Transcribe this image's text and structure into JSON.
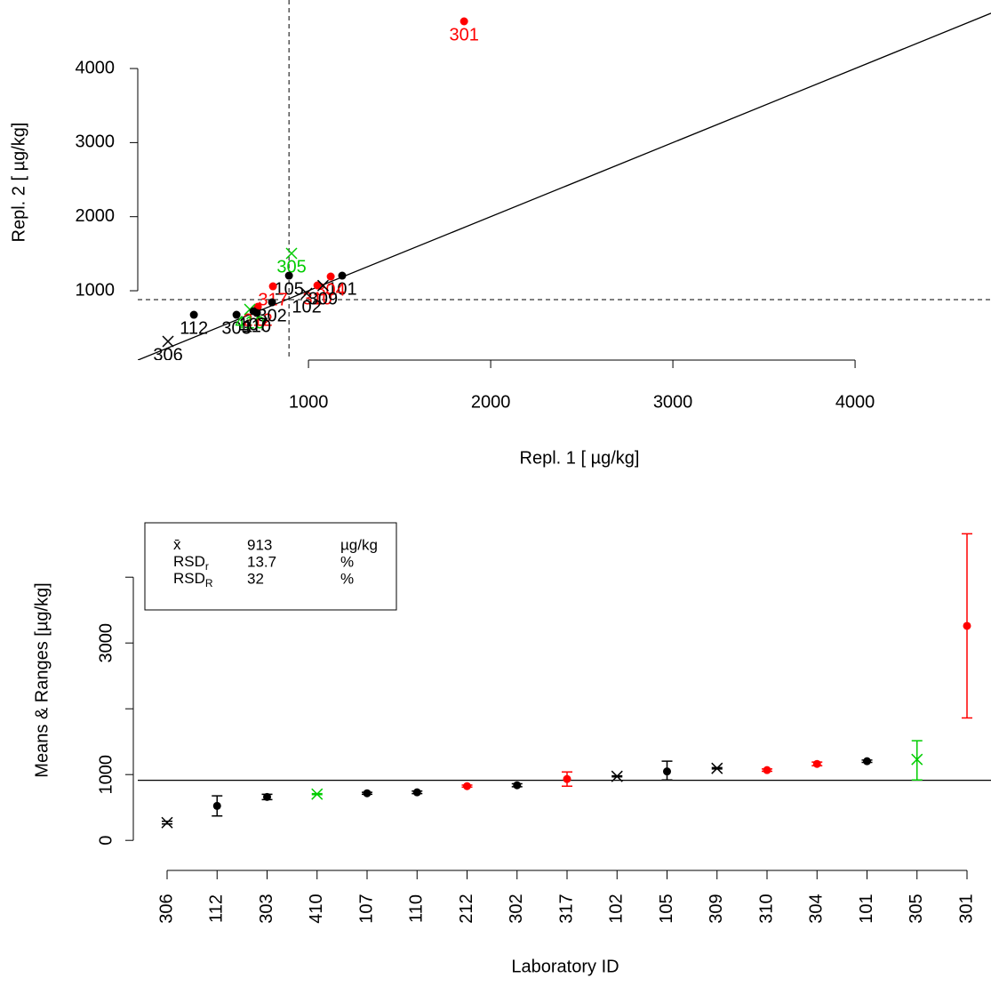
{
  "chart_data": [
    {
      "type": "scatter",
      "x_label": "Repl. 1 [ µg/kg]",
      "y_label": "Repl. 2 [ µg/kg]",
      "labels": [
        "301",
        "305",
        "105",
        "101",
        "304",
        "310",
        "317",
        "102",
        "212",
        "302",
        "112",
        "303",
        "410",
        "107",
        "110",
        "309",
        "306"
      ],
      "x": [
        1854,
        907,
        893,
        1185,
        1122,
        1049,
        805,
        990,
        722,
        800,
        371,
        605,
        678,
        698,
        717,
        1080,
        229
      ],
      "y": [
        4637,
        1504,
        1204,
        1204,
        1192,
        1072,
        1060,
        964,
        784,
        844,
        676,
        676,
        748,
        724,
        700,
        1070,
        316
      ],
      "colors": [
        "#ff0000",
        "#00cc00",
        "#000000",
        "#000000",
        "#ff0000",
        "#ff0000",
        "#ff0000",
        "#000000",
        "#ff0000",
        "#000000",
        "#000000",
        "#000000",
        "#00cc00",
        "#000000",
        "#000000",
        "#000000",
        "#000000"
      ],
      "markers": [
        "dot",
        "cross",
        "dot",
        "dot",
        "dot",
        "dot",
        "dot",
        "cross",
        "dot",
        "dot",
        "dot",
        "dot",
        "cross",
        "dot",
        "dot",
        "cross",
        "cross"
      ],
      "xlim": [
        63,
        4746
      ],
      "ylim": [
        64,
        4925
      ],
      "xticks": [
        1000,
        2000,
        3000,
        4000
      ],
      "yticks": [
        1000,
        2000,
        3000,
        4000
      ],
      "ref_x": 893,
      "ref_y": 880,
      "identity_line": true
    },
    {
      "type": "errorbar",
      "x_label": "Laboratory ID",
      "y_label": "Means & Ranges [µg/kg]",
      "categories": [
        "306",
        "112",
        "303",
        "410",
        "107",
        "110",
        "212",
        "302",
        "317",
        "102",
        "105",
        "309",
        "310",
        "304",
        "101",
        "305",
        "301"
      ],
      "values": [
        270,
        524,
        660,
        703,
        716,
        730,
        824,
        838,
        932,
        973,
        1048,
        1095,
        1068,
        1162,
        1203,
        1230,
        3260
      ],
      "lows": [
        250,
        371,
        620,
        695,
        700,
        710,
        810,
        815,
        824,
        965,
        919,
        1085,
        1050,
        1135,
        1185,
        919,
        1860
      ],
      "highs": [
        290,
        676,
        700,
        710,
        730,
        750,
        840,
        860,
        1040,
        980,
        1203,
        1105,
        1085,
        1190,
        1220,
        1514,
        4660
      ],
      "colors": [
        "#000000",
        "#000000",
        "#000000",
        "#00cc00",
        "#000000",
        "#000000",
        "#ff0000",
        "#000000",
        "#ff0000",
        "#000000",
        "#000000",
        "#000000",
        "#ff0000",
        "#ff0000",
        "#000000",
        "#00cc00",
        "#ff0000"
      ],
      "markers": [
        "cross",
        "dot",
        "dot",
        "cross",
        "dot",
        "dot",
        "dot",
        "dot",
        "dot",
        "cross",
        "dot",
        "cross",
        "dot",
        "dot",
        "dot",
        "cross",
        "dot"
      ],
      "ylim": [
        -200,
        4800
      ],
      "yticks": [
        0,
        1000,
        3000
      ],
      "minor_yticks": [
        2000,
        4000
      ],
      "stats": [
        {
          "label": "x̄",
          "value": 913,
          "unit": "µg/kg"
        },
        {
          "label": "RSD",
          "sub": "r",
          "value": 13.7,
          "unit": "%"
        },
        {
          "label": "RSD",
          "sub": "R",
          "value": 32,
          "unit": "%"
        }
      ]
    }
  ]
}
